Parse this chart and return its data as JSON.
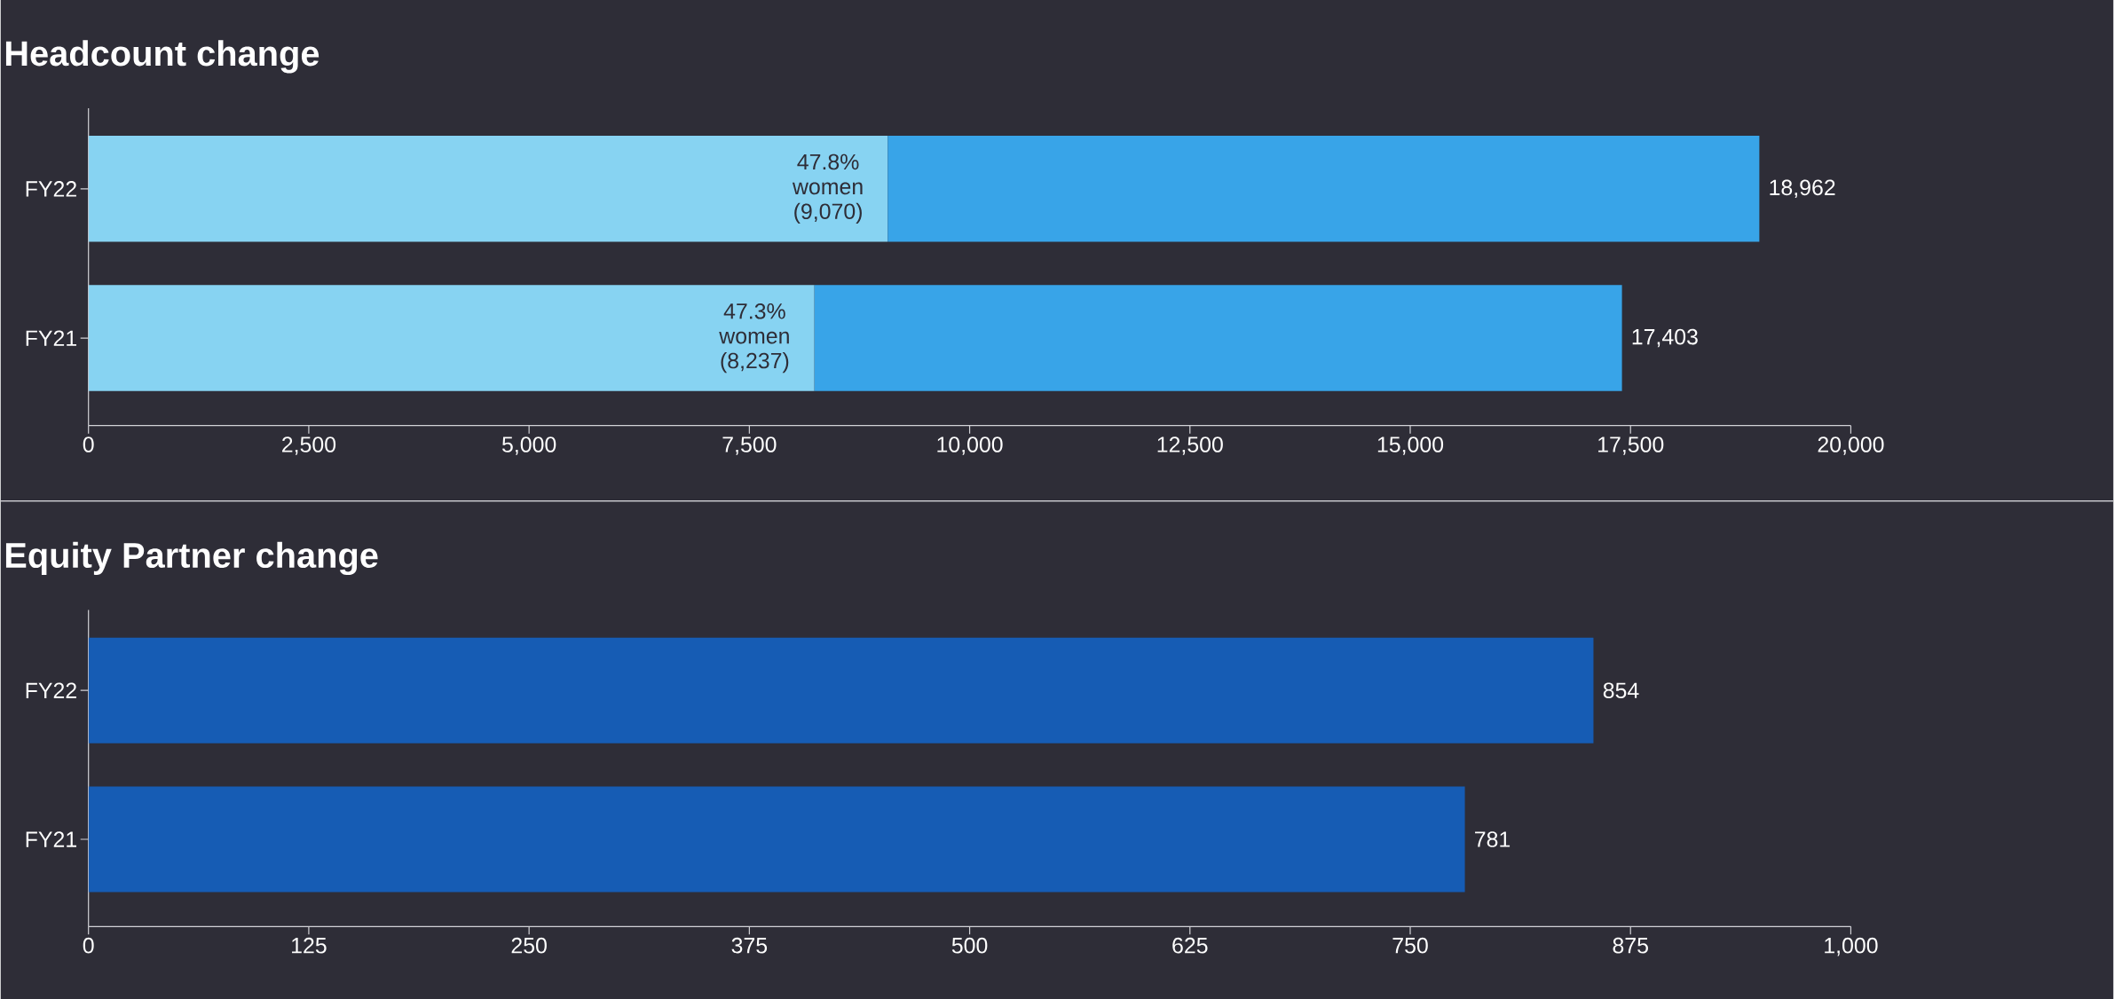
{
  "chart_data": [
    {
      "type": "bar",
      "orientation": "horizontal",
      "stacked": true,
      "title": "Headcount change",
      "categories": [
        "FY22",
        "FY21"
      ],
      "series": [
        {
          "color": "#87d3f2",
          "values": [
            9070,
            8237
          ],
          "value_labels": [
            "47.8% women (9,070)",
            "47.3% women (8,237)"
          ]
        },
        {
          "color": "#38a4e8",
          "values": [
            9892,
            9166
          ]
        }
      ],
      "totals": [
        "18,962",
        "17,403"
      ],
      "xlim": [
        0,
        20000
      ],
      "xticks": [
        0,
        {
          "value": 2500,
          "label": "2,500"
        },
        {
          "value": 5000,
          "label": "5,000"
        },
        {
          "value": 7500,
          "label": "7,500"
        },
        {
          "value": 10000,
          "label": "10,000"
        },
        {
          "value": 12500,
          "label": "12,500"
        },
        {
          "value": 15000,
          "label": "15,000"
        },
        {
          "value": 17500,
          "label": "17,500"
        },
        {
          "value": 20000,
          "label": "20,000"
        }
      ]
    },
    {
      "type": "bar",
      "orientation": "horizontal",
      "title": "Equity Partner change",
      "categories": [
        "FY22",
        "FY21"
      ],
      "values": [
        854,
        781
      ],
      "color": "#165cb4",
      "data_labels": true,
      "xlim": [
        0,
        1000
      ],
      "xticks": [
        0,
        125,
        250,
        375,
        500,
        625,
        750,
        875,
        {
          "value": 1000,
          "label": "1,000"
        }
      ]
    }
  ]
}
